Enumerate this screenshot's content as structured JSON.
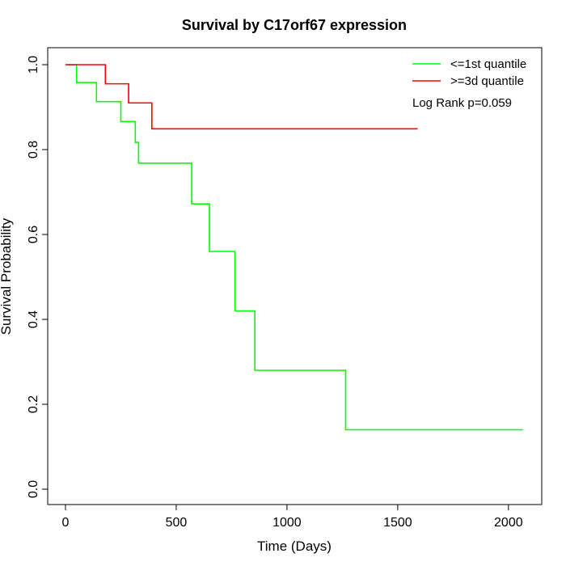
{
  "chart_data": {
    "type": "line",
    "title": "Survival by C17orf67 expression",
    "xlabel": "Time (Days)",
    "ylabel": "Survival Probability",
    "xlim": [
      0,
      2070
    ],
    "ylim": [
      0,
      1
    ],
    "xticks": [
      0,
      500,
      1000,
      1500,
      2000
    ],
    "yticks": [
      0.0,
      0.2,
      0.4,
      0.6,
      0.8,
      1.0
    ],
    "ytick_labels": [
      "0.0",
      "0.2",
      "0.4",
      "0.6",
      "0.8",
      "1.0"
    ],
    "legend_position": "top-right",
    "annotation": "Log Rank p=0.059",
    "series": [
      {
        "name": "<=1st quantile",
        "color": "#00ff00",
        "step": true,
        "x": [
          0,
          50,
          140,
          250,
          315,
          330,
          570,
          650,
          765,
          855,
          1265,
          2065
        ],
        "y": [
          1.0,
          0.958,
          0.913,
          0.866,
          0.817,
          0.768,
          0.672,
          0.56,
          0.42,
          0.28,
          0.14,
          0.14
        ]
      },
      {
        "name": ">=3d quantile",
        "color": "#ff0000",
        "step": true,
        "x": [
          0,
          180,
          285,
          390,
          1590
        ],
        "y": [
          1.0,
          0.955,
          0.91,
          0.849,
          0.849
        ]
      }
    ]
  }
}
